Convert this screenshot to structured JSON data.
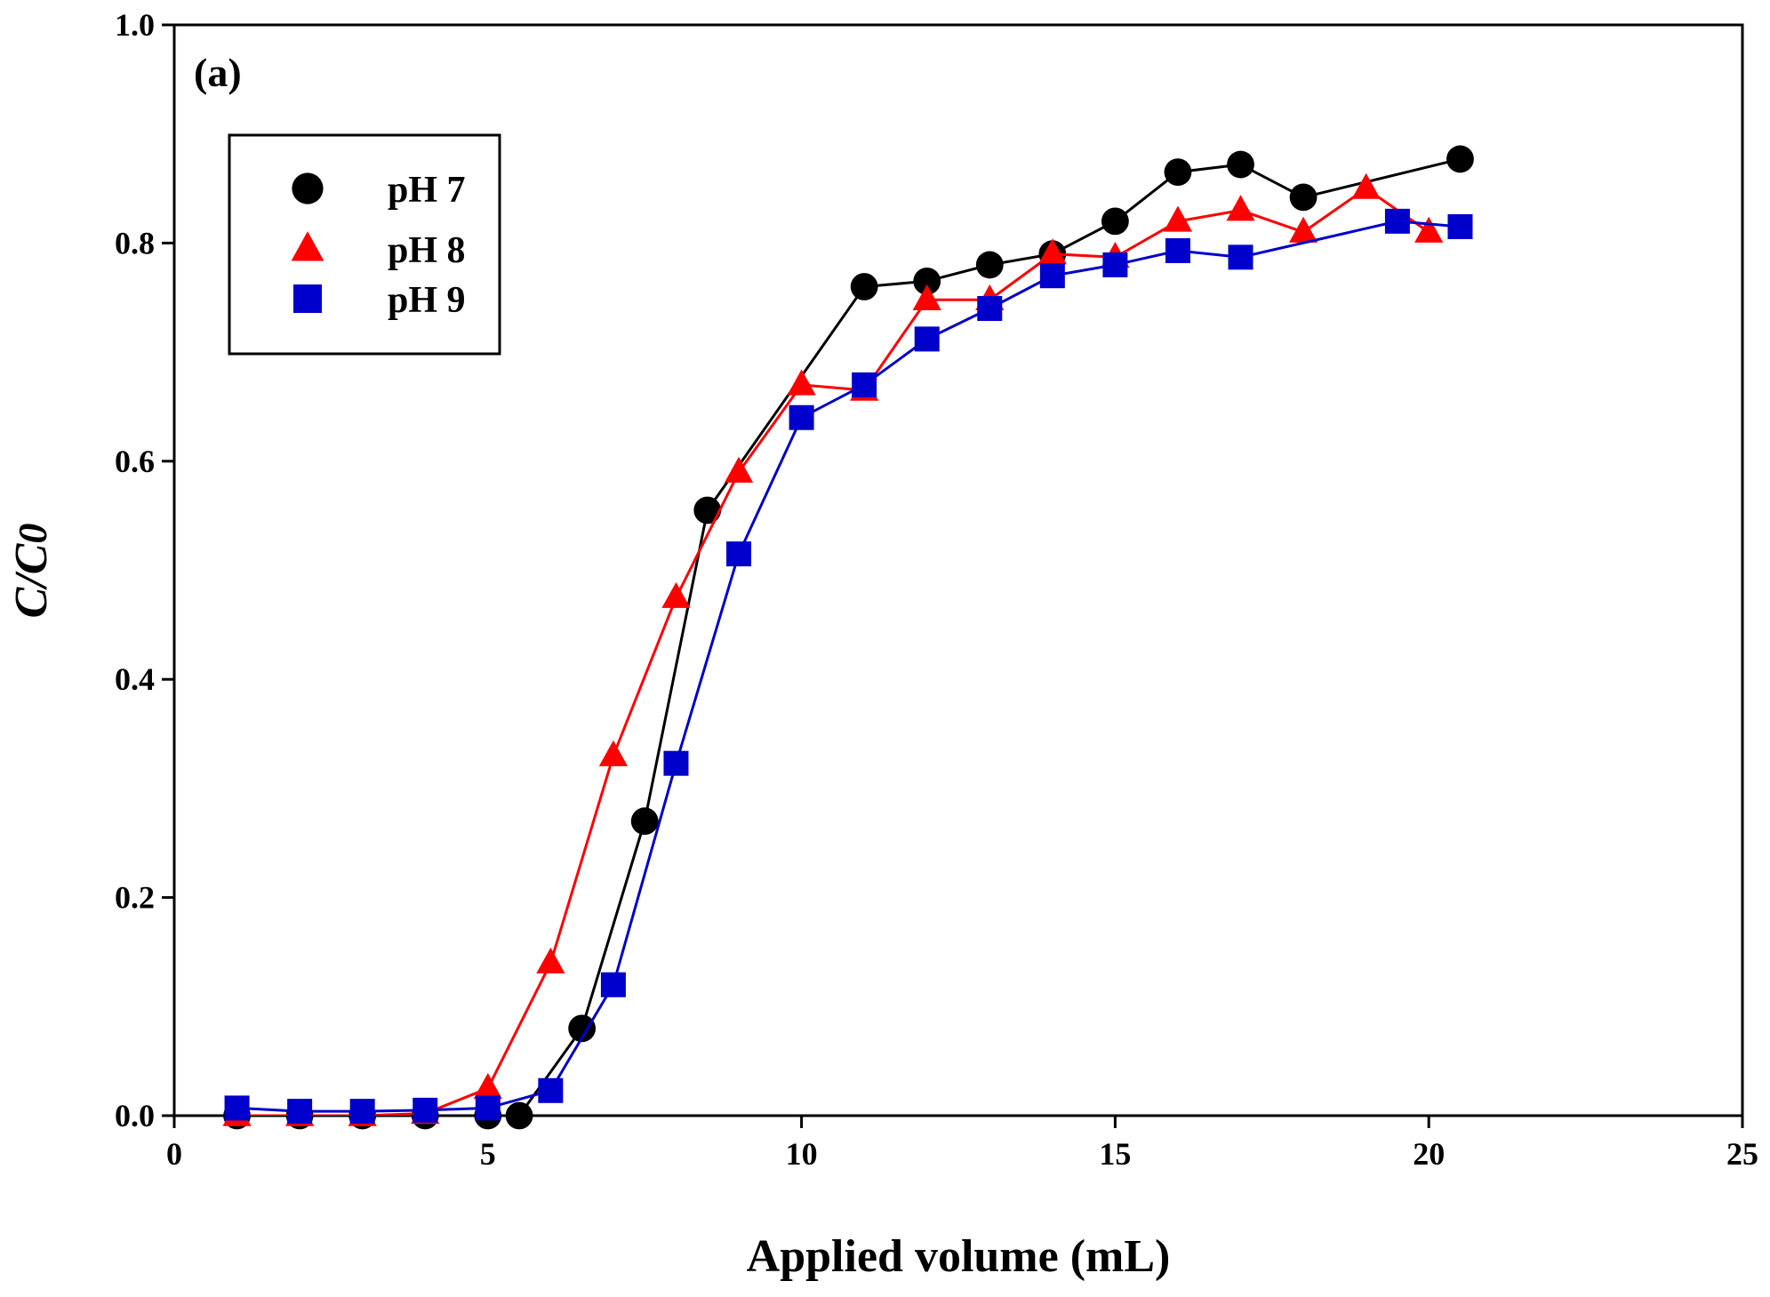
{
  "chart_data": {
    "type": "line",
    "panel_label": "(a)",
    "xlabel": "Applied volume (mL)",
    "ylabel": "C/C0",
    "ylabel_parts": {
      "main": "C/C",
      "sub": "0"
    },
    "xlim": [
      0,
      25
    ],
    "ylim": [
      0,
      1.0
    ],
    "xticks": [
      0,
      5,
      10,
      15,
      20,
      25
    ],
    "xtick_labels": [
      "0",
      "5",
      "10",
      "15",
      "20",
      "25"
    ],
    "yticks": [
      0.0,
      0.2,
      0.4,
      0.6,
      0.8,
      1.0
    ],
    "ytick_labels": [
      "0.0",
      "0.2",
      "0.4",
      "0.6",
      "0.8",
      "1.0"
    ],
    "grid": false,
    "legend_position": "top-left",
    "series": [
      {
        "name": "pH 7",
        "color": "#000000",
        "marker": "circle",
        "x": [
          1,
          2,
          3,
          4,
          5,
          5.5,
          6.5,
          7.5,
          8.5,
          11,
          12,
          13,
          14,
          15,
          16,
          17,
          18,
          20.5
        ],
        "y": [
          0.0,
          0.0,
          0.0,
          0.0,
          0.0,
          0.0,
          0.08,
          0.27,
          0.555,
          0.76,
          0.765,
          0.78,
          0.79,
          0.82,
          0.865,
          0.872,
          0.842,
          0.877
        ]
      },
      {
        "name": "pH 8",
        "color": "#ff0000",
        "marker": "triangle",
        "x": [
          1,
          2,
          3,
          4,
          5,
          6,
          7,
          8,
          9,
          10,
          11,
          12,
          13,
          14,
          15,
          16,
          17,
          18,
          19,
          20
        ],
        "y": [
          0.0,
          0.0,
          0.0,
          0.002,
          0.025,
          0.14,
          0.33,
          0.475,
          0.59,
          0.67,
          0.665,
          0.748,
          0.748,
          0.79,
          0.787,
          0.82,
          0.83,
          0.81,
          0.85,
          0.81
        ]
      },
      {
        "name": "pH 9",
        "color": "#0000cc",
        "marker": "square",
        "x": [
          1,
          2,
          3,
          4,
          5,
          6,
          7,
          8,
          9,
          10,
          11,
          12,
          13,
          14,
          15,
          16,
          17,
          19.5,
          20.5
        ],
        "y": [
          0.007,
          0.004,
          0.004,
          0.005,
          0.007,
          0.023,
          0.12,
          0.323,
          0.515,
          0.64,
          0.67,
          0.712,
          0.74,
          0.77,
          0.78,
          0.793,
          0.787,
          0.82,
          0.815
        ]
      }
    ]
  }
}
